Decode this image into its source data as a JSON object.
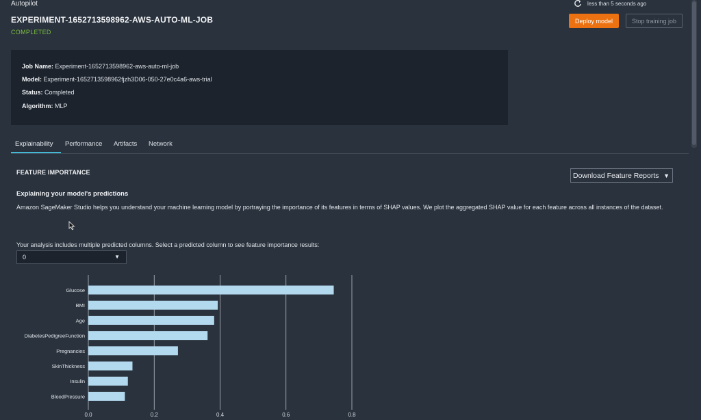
{
  "breadcrumb": "Autopilot",
  "refresh": {
    "icon": "refresh-icon",
    "text": "less than 5 seconds ago"
  },
  "job": {
    "title": "EXPERIMENT-1652713598962-AWS-AUTO-ML-JOB",
    "status": "COMPLETED",
    "status_color": "#7bbf3f"
  },
  "actions": {
    "deploy": "Deploy model",
    "stop": "Stop training job",
    "accent": "#ec7211"
  },
  "info": {
    "job_name_label": "Job Name:",
    "job_name": "Experiment-1652713598962-aws-auto-ml-job",
    "model_label": "Model:",
    "model": "Experiment-1652713598962fjzh3D06-050-27e0c4a6-aws-trial",
    "status_label": "Status:",
    "status": "Completed",
    "algorithm_label": "Algorithm:",
    "algorithm": "MLP"
  },
  "tabs": [
    "Explainability",
    "Performance",
    "Artifacts",
    "Network"
  ],
  "active_tab": "Explainability",
  "feature_importance": {
    "title": "FEATURE IMPORTANCE",
    "download_label": "Download Feature Reports",
    "subtitle": "Explaining your model's predictions",
    "description": "Amazon SageMaker Studio helps you understand your machine learning model by portraying the importance of its features in terms of SHAP values. We plot the aggregated SHAP value for each feature across all instances of the dataset.",
    "select_label": "Your analysis includes multiple predicted columns. Select a predicted column to see feature importance results:",
    "selected_column": "0"
  },
  "chart_data": {
    "type": "bar",
    "orientation": "horizontal",
    "categories": [
      "Glucose",
      "BMI",
      "Age",
      "DiabetesPedigreeFunction",
      "Pregnancies",
      "SkinThickness",
      "Insulin",
      "BloodPressure"
    ],
    "values": [
      0.745,
      0.393,
      0.382,
      0.362,
      0.272,
      0.134,
      0.12,
      0.111
    ],
    "x_ticks": [
      "0.0",
      "0.2",
      "0.4",
      "0.6",
      "0.8"
    ],
    "xlim": [
      0,
      0.8
    ],
    "grid": true,
    "bar_color": "#b3d9ee"
  }
}
